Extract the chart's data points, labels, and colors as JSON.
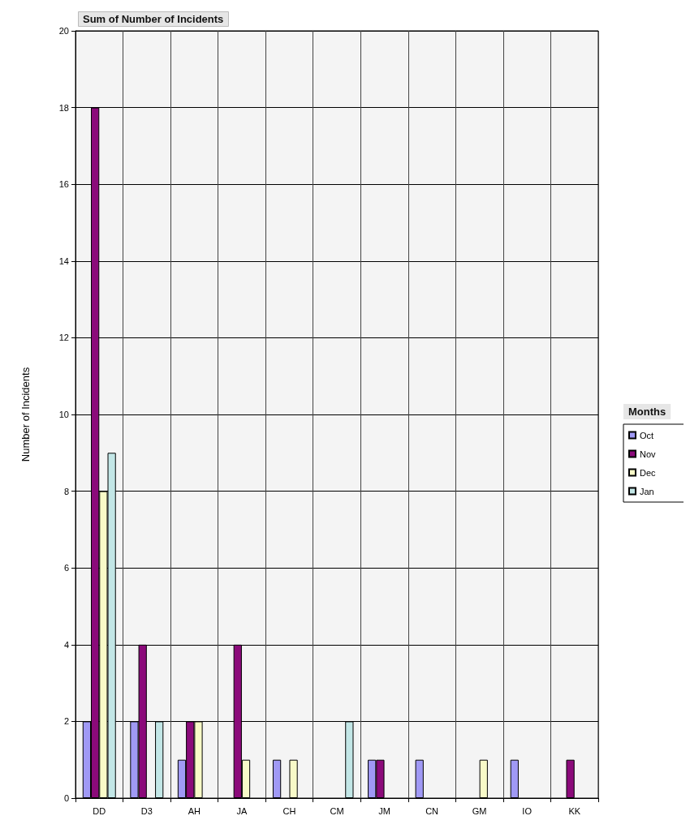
{
  "chart_data": {
    "type": "bar",
    "title": "Sum of Number of Incidents",
    "ylabel": "Number of Incidents",
    "legend_title": "Months",
    "categories": [
      "DD",
      "D3",
      "AH",
      "JA",
      "CH",
      "CM",
      "JM",
      "CN",
      "GM",
      "IO",
      "KK"
    ],
    "series": [
      {
        "name": "Oct",
        "color": "#a099f5",
        "values": [
          2,
          2,
          1,
          null,
          1,
          null,
          1,
          1,
          null,
          1,
          null
        ]
      },
      {
        "name": "Nov",
        "color": "#8b0a7a",
        "values": [
          18,
          4,
          2,
          4,
          null,
          null,
          1,
          null,
          null,
          null,
          1
        ]
      },
      {
        "name": "Dec",
        "color": "#f8fac8",
        "values": [
          8,
          null,
          2,
          1,
          1,
          null,
          null,
          null,
          1,
          null,
          null
        ]
      },
      {
        "name": "Jan",
        "color": "#c2e6e6",
        "values": [
          9,
          2,
          null,
          null,
          null,
          2,
          null,
          null,
          null,
          null,
          null
        ]
      }
    ],
    "ylim": [
      0,
      20
    ],
    "yticks": [
      0,
      2,
      4,
      6,
      8,
      10,
      12,
      14,
      16,
      18,
      20
    ],
    "grid": true,
    "legend": "right"
  }
}
